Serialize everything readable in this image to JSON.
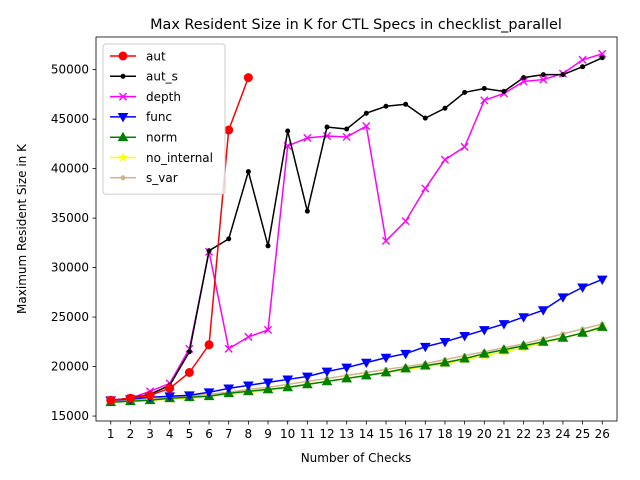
{
  "chart_data": {
    "type": "line",
    "title": "Max Resident Size in K for CTL Specs in checklist_parallel",
    "xlabel": "Number of Checks",
    "ylabel": "Maximum Resident Size in K",
    "xlim": [
      0.25,
      26.75
    ],
    "ylim": [
      14500,
      53300
    ],
    "xticks": [
      1,
      2,
      3,
      4,
      5,
      6,
      7,
      8,
      9,
      10,
      11,
      12,
      13,
      14,
      15,
      16,
      17,
      18,
      19,
      20,
      21,
      22,
      23,
      24,
      25,
      26
    ],
    "yticks": [
      15000,
      20000,
      25000,
      30000,
      35000,
      40000,
      45000,
      50000
    ],
    "grid": false,
    "legend_position": "upper-left",
    "series": [
      {
        "name": "aut",
        "color": "#ff0000",
        "marker": "circle",
        "x": [
          1,
          2,
          3,
          4,
          5,
          6,
          7,
          8
        ],
        "y": [
          16600,
          16800,
          17100,
          17800,
          19400,
          22200,
          43900,
          49200
        ]
      },
      {
        "name": "aut_s",
        "color": "#000000",
        "marker": "point",
        "x": [
          1,
          2,
          3,
          4,
          5,
          6,
          7,
          8,
          9,
          10,
          11,
          12,
          13,
          14,
          15,
          16,
          17,
          18,
          19,
          20,
          21,
          22,
          23,
          24,
          25,
          26
        ],
        "y": [
          16600,
          16800,
          17200,
          18100,
          21500,
          31700,
          32900,
          39700,
          32200,
          43800,
          35700,
          44200,
          44000,
          45600,
          46300,
          46500,
          45100,
          46100,
          47700,
          48100,
          47800,
          49200,
          49500,
          49500,
          50300,
          51200
        ]
      },
      {
        "name": "depth",
        "color": "#ff00ff",
        "marker": "x",
        "x": [
          1,
          2,
          3,
          4,
          5,
          6,
          7,
          8,
          9,
          10,
          11,
          12,
          13,
          14,
          15,
          16,
          17,
          18,
          19,
          20,
          21,
          22,
          23,
          24,
          25,
          26
        ],
        "y": [
          16600,
          16800,
          17500,
          18300,
          21800,
          31600,
          21800,
          23000,
          23700,
          42300,
          43100,
          43300,
          43200,
          44300,
          32700,
          34700,
          38000,
          40900,
          42200,
          46900,
          47600,
          48800,
          49000,
          49600,
          51000,
          51600
        ]
      },
      {
        "name": "func",
        "color": "#0000ff",
        "marker": "triangle-down",
        "x": [
          1,
          2,
          3,
          4,
          5,
          6,
          7,
          8,
          9,
          10,
          11,
          12,
          13,
          14,
          15,
          16,
          17,
          18,
          19,
          20,
          21,
          22,
          23,
          24,
          25,
          26
        ],
        "y": [
          16600,
          16700,
          16900,
          17000,
          17100,
          17400,
          17800,
          18100,
          18400,
          18700,
          19000,
          19500,
          19900,
          20400,
          20900,
          21300,
          22000,
          22500,
          23100,
          23700,
          24300,
          25000,
          25700,
          27000,
          28000,
          28800
        ]
      },
      {
        "name": "norm",
        "color": "#008000",
        "marker": "triangle-up",
        "x": [
          1,
          2,
          3,
          4,
          5,
          6,
          7,
          8,
          9,
          10,
          11,
          12,
          13,
          14,
          15,
          16,
          17,
          18,
          19,
          20,
          21,
          22,
          23,
          24,
          25,
          26
        ],
        "y": [
          16400,
          16500,
          16600,
          16800,
          16900,
          17000,
          17300,
          17500,
          17700,
          17900,
          18200,
          18500,
          18800,
          19100,
          19400,
          19800,
          20100,
          20400,
          20800,
          21300,
          21700,
          22100,
          22500,
          22900,
          23400,
          24000
        ]
      },
      {
        "name": "no_internal",
        "color": "#ffff00",
        "marker": "star",
        "x": [
          1,
          2,
          3,
          4,
          5,
          6,
          7,
          8,
          9,
          10,
          11,
          12,
          13,
          14,
          15,
          16,
          17,
          18,
          19,
          20,
          21,
          22,
          23,
          24,
          25,
          26
        ],
        "y": [
          16400,
          16500,
          16600,
          16700,
          16800,
          17000,
          17200,
          17400,
          17600,
          17900,
          18200,
          18500,
          18800,
          19100,
          19400,
          19700,
          20000,
          20300,
          20700,
          21100,
          21500,
          21900,
          22400,
          22900,
          23400,
          23900
        ]
      },
      {
        "name": "s_var",
        "color": "#d2b48c",
        "marker": "point",
        "x": [
          1,
          2,
          3,
          4,
          5,
          6,
          7,
          8,
          9,
          10,
          11,
          12,
          13,
          14,
          15,
          16,
          17,
          18,
          19,
          20,
          21,
          22,
          23,
          24,
          25,
          26
        ],
        "y": [
          16500,
          16600,
          16700,
          16900,
          17000,
          17200,
          17400,
          17700,
          17900,
          18200,
          18500,
          18800,
          19100,
          19400,
          19700,
          20000,
          20300,
          20700,
          21100,
          21500,
          21900,
          22300,
          22800,
          23300,
          23800,
          24300
        ]
      }
    ]
  }
}
